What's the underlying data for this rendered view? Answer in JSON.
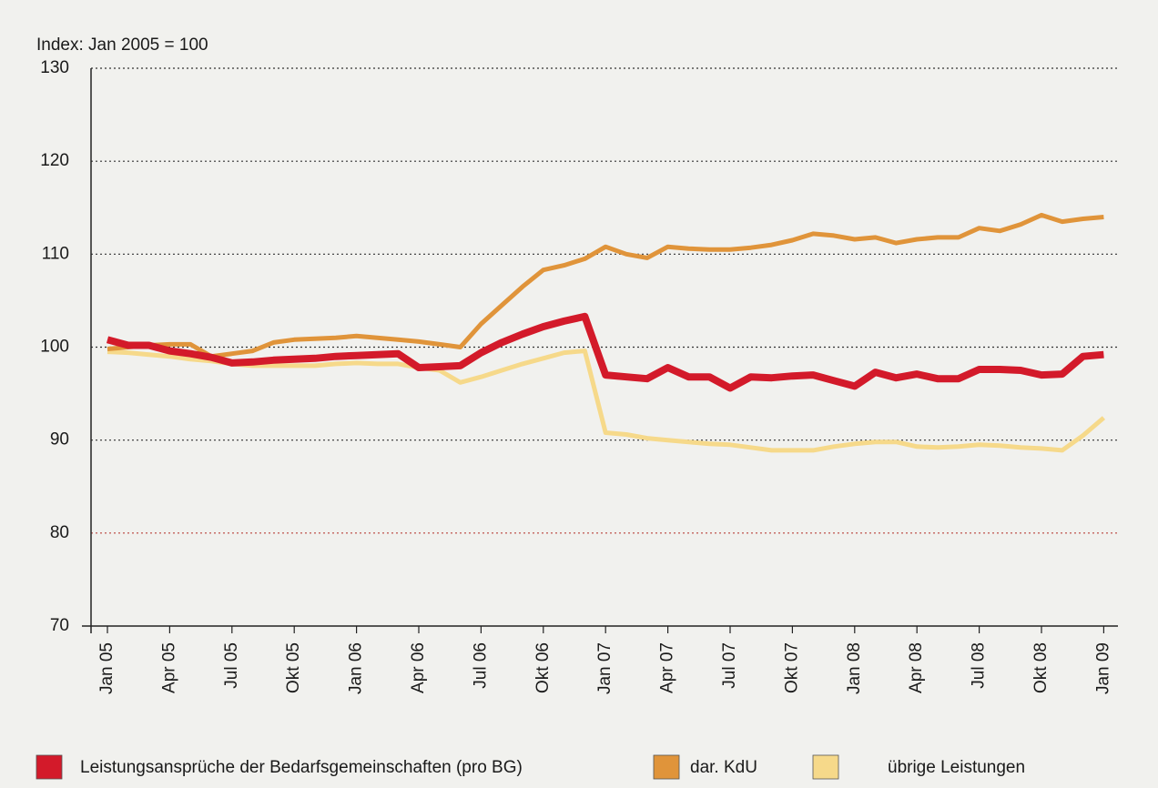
{
  "chart_data": {
    "type": "line",
    "y_label": "Index: Jan 2005 = 100",
    "categories": [
      "Jan 05",
      null,
      null,
      "Apr 05",
      null,
      null,
      "Jul 05",
      null,
      null,
      "Okt 05",
      null,
      null,
      "Jan 06",
      null,
      null,
      "Apr 06",
      null,
      null,
      "Jul 06",
      null,
      null,
      "Okt 06",
      null,
      null,
      "Jan 07",
      null,
      null,
      "Apr 07",
      null,
      null,
      "Jul 07",
      null,
      null,
      "Okt 07",
      null,
      null,
      "Jan 08",
      null,
      null,
      "Apr 08",
      null,
      null,
      "Jul 08",
      null,
      null,
      "Okt 08",
      null,
      null,
      "Jan 09"
    ],
    "ylim": [
      70,
      130
    ],
    "yticks": [
      70,
      80,
      90,
      100,
      110,
      120,
      130
    ],
    "grid": true,
    "legend": "bottom",
    "series": [
      {
        "name": "übrige Leistungen",
        "color": "#f6d98a",
        "width": 5,
        "values": [
          99.5,
          99.4,
          99.2,
          99.0,
          98.7,
          98.5,
          98.2,
          98.0,
          98.0,
          98.0,
          98.0,
          98.2,
          98.3,
          98.2,
          98.2,
          97.8,
          97.5,
          96.2,
          96.8,
          97.5,
          98.2,
          98.8,
          99.4,
          99.6,
          90.8,
          90.6,
          90.2,
          90.0,
          89.8,
          89.6,
          89.5,
          89.2,
          88.9,
          88.9,
          88.9,
          89.3,
          89.6,
          89.8,
          89.8,
          89.3,
          89.2,
          89.3,
          89.5,
          89.4,
          89.2,
          89.1,
          88.9,
          90.5,
          92.4
        ]
      },
      {
        "name": "dar. KdU",
        "color": "#e0943a",
        "width": 5,
        "values": [
          99.8,
          100.0,
          100.2,
          100.3,
          100.3,
          99.0,
          99.3,
          99.6,
          100.5,
          100.8,
          100.9,
          101.0,
          101.2,
          101.0,
          100.8,
          100.6,
          100.3,
          100.0,
          102.5,
          104.5,
          106.5,
          108.3,
          108.8,
          109.5,
          110.8,
          110.0,
          109.6,
          110.8,
          110.6,
          110.5,
          110.5,
          110.7,
          111.0,
          111.5,
          112.2,
          112.0,
          111.6,
          111.8,
          111.2,
          111.6,
          111.8,
          111.8,
          112.8,
          112.5,
          113.2,
          114.2,
          113.5,
          113.8,
          114.0
        ]
      },
      {
        "name": "Leistungsansprüche der Bedarfsgemeinschaften (pro BG)",
        "color": "#d31a2a",
        "width": 8,
        "values": [
          100.8,
          100.2,
          100.2,
          99.6,
          99.3,
          98.9,
          98.3,
          98.4,
          98.6,
          98.7,
          98.8,
          99.0,
          99.1,
          99.2,
          99.3,
          97.8,
          97.9,
          98.0,
          99.4,
          100.5,
          101.4,
          102.2,
          102.8,
          103.3,
          97.0,
          96.8,
          96.6,
          97.8,
          96.8,
          96.8,
          95.6,
          96.8,
          96.7,
          96.9,
          97.0,
          96.4,
          95.8,
          97.3,
          96.7,
          97.1,
          96.6,
          96.6,
          97.6,
          97.6,
          97.5,
          97.0,
          97.1,
          99.0,
          99.2
        ]
      }
    ]
  }
}
